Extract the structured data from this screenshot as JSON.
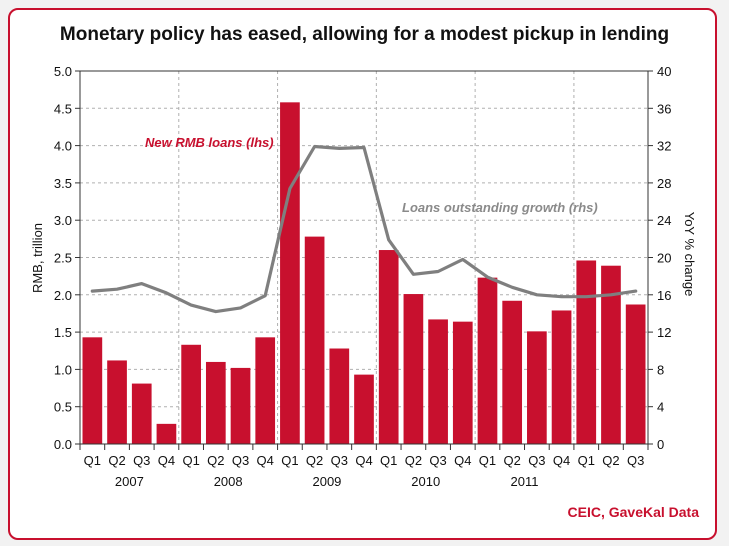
{
  "header": {
    "title": "Monetary policy has eased, allowing for a modest pickup in lending"
  },
  "footer": {
    "source": "CEIC, GaveKal Data"
  },
  "colors": {
    "bar": "#c8102e",
    "line": "#7f7f7f",
    "accent": "#c8102e",
    "grid": "#b0b0b0"
  },
  "chart_data": {
    "type": "bar",
    "title": "Monetary policy has eased, allowing for a modest pickup in lending",
    "categories": [
      "Q1",
      "Q2",
      "Q3",
      "Q4",
      "Q1",
      "Q2",
      "Q3",
      "Q4",
      "Q1",
      "Q2",
      "Q3",
      "Q4",
      "Q1",
      "Q2",
      "Q3",
      "Q4",
      "Q1",
      "Q2",
      "Q3",
      "Q4",
      "Q1",
      "Q2",
      "Q3"
    ],
    "years": [
      {
        "label": "2007",
        "start": 0,
        "end": 3
      },
      {
        "label": "2008",
        "start": 4,
        "end": 7
      },
      {
        "label": "2009",
        "start": 8,
        "end": 11
      },
      {
        "label": "2010",
        "start": 12,
        "end": 15
      },
      {
        "label": "2011",
        "start": 16,
        "end": 19
      }
    ],
    "series": [
      {
        "name": "New RMB loans (lhs)",
        "type": "bar",
        "axis": "left",
        "values": [
          1.43,
          1.12,
          0.81,
          0.27,
          1.33,
          1.1,
          1.02,
          1.43,
          4.58,
          2.78,
          1.28,
          0.93,
          2.6,
          2.01,
          1.67,
          1.64,
          2.23,
          1.92,
          1.51,
          1.79,
          2.46,
          2.39,
          1.87
        ]
      },
      {
        "name": "Loans outstanding growth (rhs)",
        "type": "line",
        "axis": "right",
        "values": [
          16.4,
          16.6,
          17.2,
          16.2,
          14.9,
          14.2,
          14.6,
          15.9,
          27.4,
          31.9,
          31.7,
          31.8,
          21.9,
          18.2,
          18.5,
          19.8,
          17.9,
          16.8,
          16.0,
          15.8,
          15.8,
          16.0,
          16.4
        ]
      }
    ],
    "ylabel": "RMB, trillion",
    "ylim": [
      0,
      5.0
    ],
    "yticks": [
      "0.0",
      "0.5",
      "1.0",
      "1.5",
      "2.0",
      "2.5",
      "3.0",
      "3.5",
      "4.0",
      "4.5",
      "5.0"
    ],
    "y2label": "YoY % change",
    "y2lim": [
      0,
      40
    ],
    "y2ticks": [
      "0",
      "4",
      "8",
      "12",
      "16",
      "20",
      "24",
      "28",
      "32",
      "36",
      "40"
    ],
    "grid": true
  }
}
